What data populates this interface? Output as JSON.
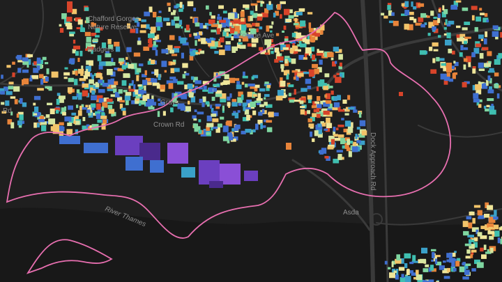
{
  "map": {
    "style": "dark",
    "background_color": "#1f1f1f",
    "water_color": "#181818",
    "road_color": "#3a3a3a",
    "label_color": "#8e8e8e",
    "boundary_color": "#e86fb0",
    "palette": [
      "#4a2a8c",
      "#6b3fbf",
      "#8a4fd6",
      "#3f6fd0",
      "#3aa0c8",
      "#3fbfb0",
      "#7fd6a0",
      "#d6e6a0",
      "#f0e69a",
      "#f2c46a",
      "#e8843a",
      "#d8442a"
    ],
    "labels": {
      "chafford": "Chafford Gorges",
      "nature_reserve": "Nature Reserve",
      "college_ave": "College Ave",
      "grays": "Grays",
      "crown_rd": "Crown Rd",
      "dock_approach": "Dock Approach Rd",
      "asda": "Asda",
      "river": "River Thames",
      "badgers": "Badgers",
      "road_left": "Rd"
    }
  }
}
